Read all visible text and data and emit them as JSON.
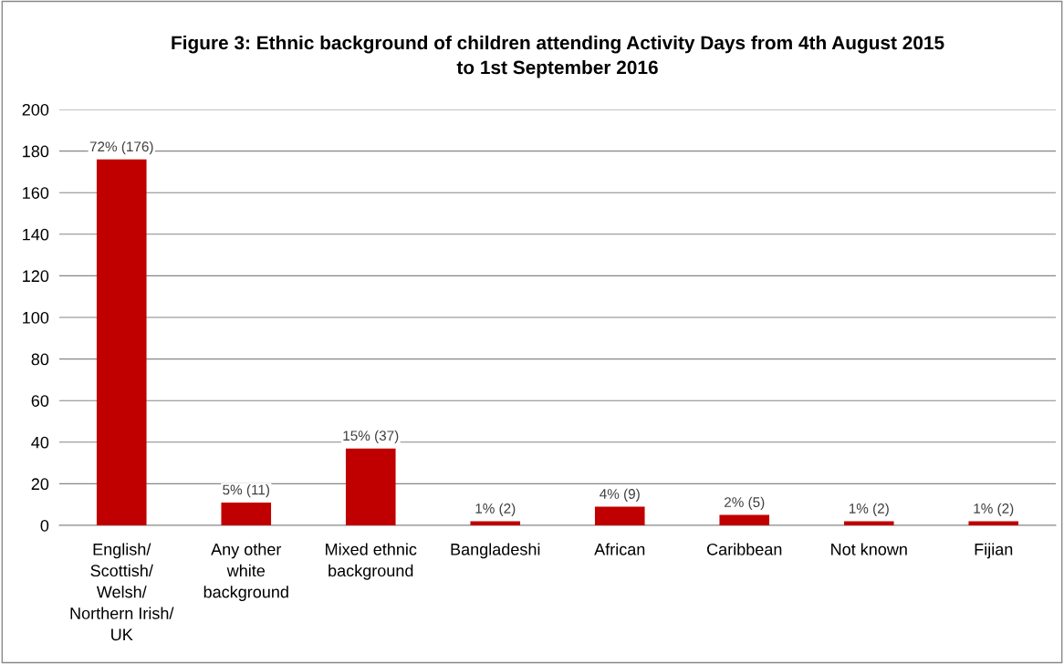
{
  "chart_data": {
    "type": "bar",
    "title": "Figure 3: Ethnic background of children attending Activity Days from 4th August 2015\nto 1st September 2016",
    "categories": [
      "English/\nScottish/\nWelsh/\nNorthern Irish/\nUK",
      "Any other\nwhite\nbackground",
      "Mixed ethnic\nbackground",
      "Bangladeshi",
      "African",
      "Caribbean",
      "Not known",
      "Fijian"
    ],
    "values": [
      176,
      11,
      37,
      2,
      9,
      5,
      2,
      2
    ],
    "value_labels": [
      "72% (176)",
      "5% (11)",
      "15% (37)",
      "1% (2)",
      "4% (9)",
      "2% (5)",
      "1% (2)",
      "1% (2)"
    ],
    "color": "#c00000",
    "ylim": [
      0,
      200
    ],
    "yticks": [
      0,
      20,
      40,
      60,
      80,
      100,
      120,
      140,
      160,
      180,
      200
    ],
    "grid": "y",
    "legend": false
  }
}
